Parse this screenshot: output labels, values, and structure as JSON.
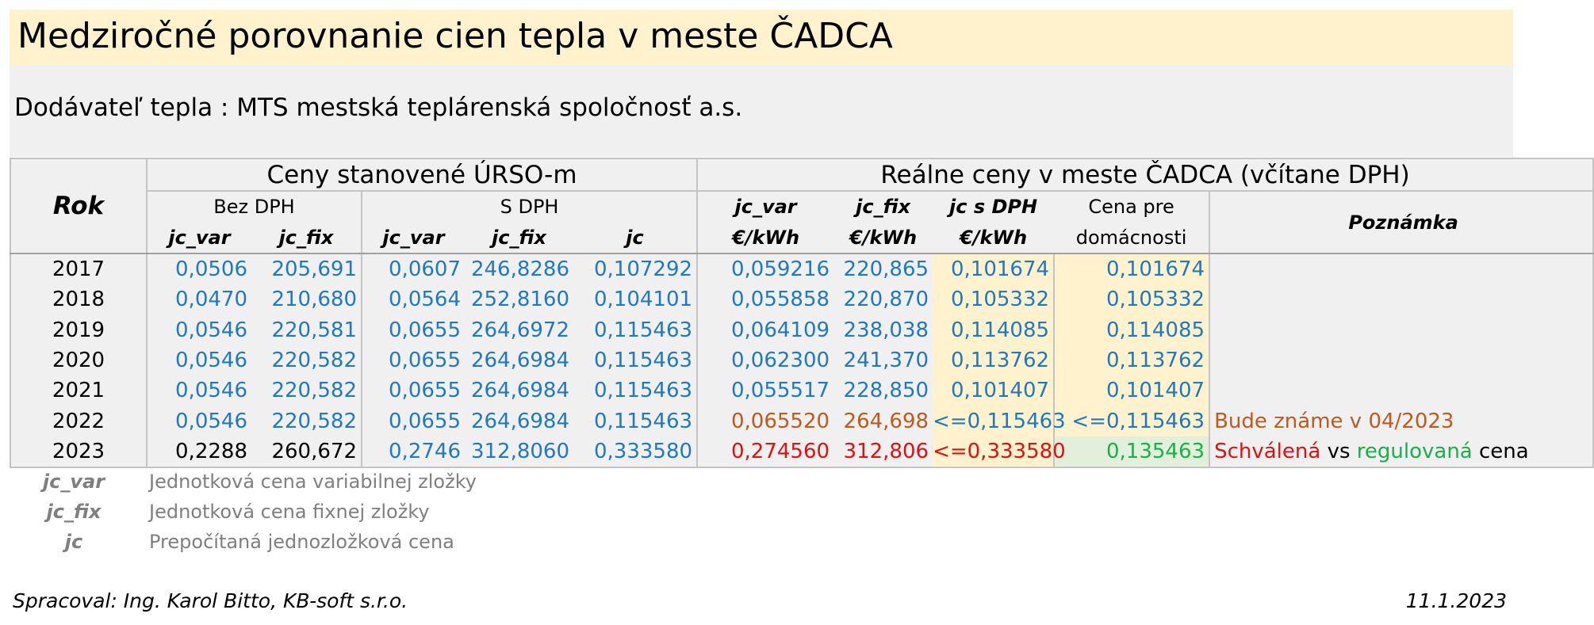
{
  "title": "Medziročné porovnanie cien tepla v meste ČADCA",
  "supplier": "Dodávateľ tepla : MTS mestská teplárenská spoločnosť a.s.",
  "table": {
    "year_header": "Rok",
    "group_urso": "Ceny stanovené ÚRSO-m",
    "group_real": "Reálne ceny v meste ČADCA (včítane DPH)",
    "sub_bez_dph": "Bez DPH",
    "sub_s_dph": "S DPH",
    "col_jc_var": "jc_var",
    "col_jc_fix": "jc_fix",
    "col_jc": "jc",
    "col_jc_var_real": "jc_var",
    "col_jc_fix_real": "jc_fix",
    "col_jc_s_dph": "jc s DPH",
    "unit_kwh": "€/kWh",
    "col_cena_pre_1": "Cena pre",
    "col_cena_pre_2": "domácnosti",
    "col_poznamka": "Poznámka",
    "rows": [
      {
        "year": "2017",
        "bez_var": "0,0506",
        "bez_fix": "205,691",
        "s_var": "0,0607",
        "s_fix": "246,8286",
        "s_jc": "0,107292",
        "r_var": "0,059216",
        "r_fix": "220,865",
        "r_jc": "0,101674",
        "cena": "0,101674"
      },
      {
        "year": "2018",
        "bez_var": "0,0470",
        "bez_fix": "210,680",
        "s_var": "0,0564",
        "s_fix": "252,8160",
        "s_jc": "0,104101",
        "r_var": "0,055858",
        "r_fix": "220,870",
        "r_jc": "0,105332",
        "cena": "0,105332"
      },
      {
        "year": "2019",
        "bez_var": "0,0546",
        "bez_fix": "220,581",
        "s_var": "0,0655",
        "s_fix": "264,6972",
        "s_jc": "0,115463",
        "r_var": "0,064109",
        "r_fix": "238,038",
        "r_jc": "0,114085",
        "cena": "0,114085"
      },
      {
        "year": "2020",
        "bez_var": "0,0546",
        "bez_fix": "220,582",
        "s_var": "0,0655",
        "s_fix": "264,6984",
        "s_jc": "0,115463",
        "r_var": "0,062300",
        "r_fix": "241,370",
        "r_jc": "0,113762",
        "cena": "0,113762"
      },
      {
        "year": "2021",
        "bez_var": "0,0546",
        "bez_fix": "220,582",
        "s_var": "0,0655",
        "s_fix": "264,6984",
        "s_jc": "0,115463",
        "r_var": "0,055517",
        "r_fix": "228,850",
        "r_jc": "0,101407",
        "cena": "0,101407"
      },
      {
        "year": "2022",
        "bez_var": "0,0546",
        "bez_fix": "220,582",
        "s_var": "0,0655",
        "s_fix": "264,6984",
        "s_jc": "0,115463",
        "r_var": "0,065520",
        "r_fix": "264,698",
        "r_jc": "<=0,115463",
        "cena": "<=0,115463",
        "note": "Bude známe v 04/2023"
      },
      {
        "year": "2023",
        "bez_var": "0,2288",
        "bez_fix": "260,672",
        "s_var": "0,2746",
        "s_fix": "312,8060",
        "s_jc": "0,333580",
        "r_var": "0,274560",
        "r_fix": "312,806",
        "r_jc": "<=0,333580",
        "cena": "0,135463",
        "note_approved": "Schválená",
        "note_vs": "vs",
        "note_regulated": "regulovaná",
        "note_price": "cena"
      }
    ]
  },
  "legend": [
    {
      "abbr": "jc_var",
      "text": "Jednotková cena variabilnej zložky"
    },
    {
      "abbr": "jc_fix",
      "text": "Jednotková cena fixnej zložky"
    },
    {
      "abbr": "jc",
      "text": "Prepočítaná jednozložková cena"
    }
  ],
  "footer": {
    "author": "Spracoval: Ing. Karol Bitto, KB-soft s.r.o.",
    "date": "11.1.2023"
  },
  "colors": {
    "title_bg": "#fff2cc",
    "gray_bg": "#f0f0f0",
    "value_blue": "#1f78c0",
    "value_orange": "#c0591c",
    "value_red": "#e01010",
    "value_green": "#18b04a",
    "legend_gray": "#7f7f7f"
  }
}
